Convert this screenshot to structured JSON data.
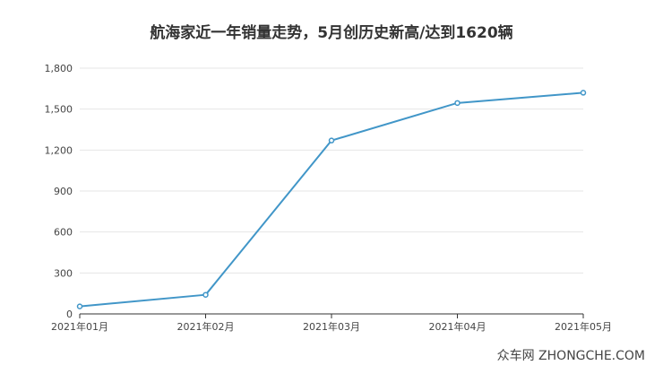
{
  "chart_data": {
    "type": "line",
    "title": "航海家近一年销量走势，5月创历史新高/达到1620辆",
    "x": [
      "2021年01月",
      "2021年02月",
      "2021年03月",
      "2021年04月",
      "2021年05月"
    ],
    "series": [
      {
        "values": [
          55,
          140,
          1270,
          1545,
          1620
        ]
      }
    ],
    "ylim": [
      0,
      1800
    ],
    "yticks": [
      "0",
      "300",
      "600",
      "900",
      "1,200",
      "1,500",
      "1,800"
    ],
    "grid": true,
    "colors": {
      "line": "#4196c8",
      "grid": "#e6e6e6",
      "axis": "#333333",
      "tick_label": "#444444"
    }
  },
  "watermark": "众车网 ZHONGCHE.COM"
}
